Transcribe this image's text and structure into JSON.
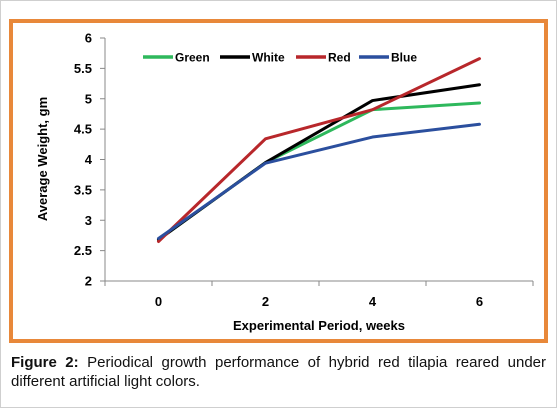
{
  "chart_data": {
    "type": "line",
    "xlabel": "Experimental Period, weeks",
    "ylabel": "Average Weight, gm",
    "x": [
      0,
      2,
      4,
      6
    ],
    "x_ticks": [
      "0",
      "2",
      "4",
      "6"
    ],
    "y_ticks": [
      "2",
      "2.5",
      "3",
      "3.5",
      "4",
      "4.5",
      "5",
      "5.5",
      "6"
    ],
    "ylim": [
      2,
      6
    ],
    "grid": false,
    "legend_position": "top-center",
    "series": [
      {
        "name": "Green",
        "color": "#2eb85c",
        "values": [
          2.68,
          3.95,
          4.82,
          4.93
        ]
      },
      {
        "name": "White",
        "color": "#000000",
        "values": [
          2.68,
          3.95,
          4.97,
          5.23
        ]
      },
      {
        "name": "Red",
        "color": "#b8272b",
        "values": [
          2.65,
          4.34,
          4.82,
          5.66
        ]
      },
      {
        "name": "Blue",
        "color": "#2b4f9e",
        "values": [
          2.7,
          3.94,
          4.37,
          4.58
        ]
      }
    ]
  },
  "caption": {
    "label": "Figure 2:",
    "text": " Periodical growth performance of hybrid red tilapia reared under different artificial light colors."
  }
}
